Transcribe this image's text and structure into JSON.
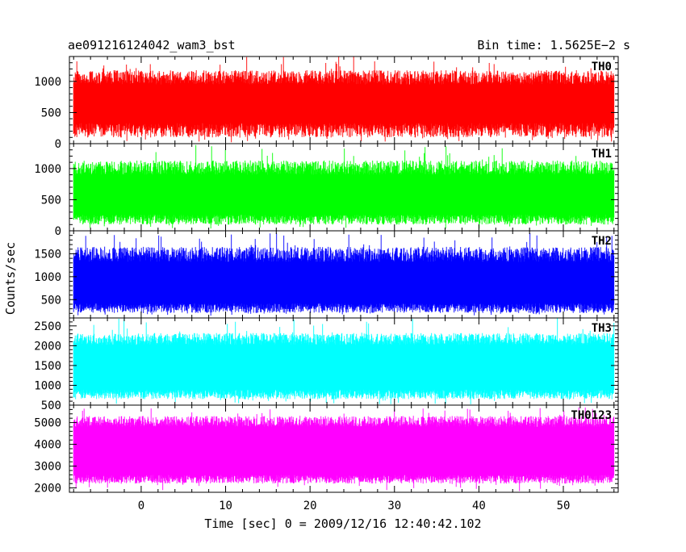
{
  "chart_data": {
    "type": "line",
    "title": "ae091216124042_wam3_bst",
    "bin_time_label": "Bin time: 1.5625E−2 s",
    "xlabel": "Time [sec] 0 = 2009/12/16 12:40:42.102",
    "ylabel": "Counts/sec",
    "xlim": [
      -8.5,
      56.5
    ],
    "data_range": [
      -8,
      56
    ],
    "x_ticks": [
      0,
      10,
      20,
      30,
      40,
      50
    ],
    "x_tick_labels": [
      "0",
      "10",
      "20",
      "30",
      "40",
      "50"
    ],
    "panels": [
      {
        "name": "TH0",
        "color": "#ff0000",
        "ylim": [
          0,
          1400
        ],
        "y_ticks": [
          0,
          500,
          1000
        ],
        "y_tick_labels": [
          "0",
          "500",
          "1000"
        ],
        "fill_band": [
          330,
          950
        ],
        "typical_min": 100,
        "typical_max": 1180,
        "extreme_min": 20,
        "extreme_max": 1420
      },
      {
        "name": "TH1",
        "color": "#00ff00",
        "ylim": [
          0,
          1400
        ],
        "y_ticks": [
          0,
          500,
          1000
        ],
        "y_tick_labels": [
          "0",
          "500",
          "1000"
        ],
        "fill_band": [
          260,
          900
        ],
        "typical_min": 100,
        "typical_max": 1130,
        "extreme_min": 30,
        "extreme_max": 1390
      },
      {
        "name": "TH2",
        "color": "#0000ff",
        "ylim": [
          100,
          2000
        ],
        "y_ticks": [
          500,
          1000,
          1500
        ],
        "y_tick_labels": [
          "500",
          "1000",
          "1500"
        ],
        "fill_band": [
          420,
          1320
        ],
        "typical_min": 210,
        "typical_max": 1650,
        "extreme_min": 150,
        "extreme_max": 1950
      },
      {
        "name": "TH3",
        "color": "#00ffff",
        "ylim": [
          500,
          2700
        ],
        "y_ticks": [
          500,
          1000,
          1500,
          2000,
          2500
        ],
        "y_tick_labels": [
          "500",
          "1000",
          "1500",
          "2000",
          "2500"
        ],
        "fill_band": [
          890,
          2020
        ],
        "typical_min": 650,
        "typical_max": 2320,
        "extreme_min": 520,
        "extreme_max": 2700
      },
      {
        "name": "TH0123",
        "color": "#ff00ff",
        "ylim": [
          1800,
          5800
        ],
        "y_ticks": [
          2000,
          3000,
          4000,
          5000
        ],
        "y_tick_labels": [
          "2000",
          "3000",
          "4000",
          "5000"
        ],
        "fill_band": [
          2600,
          4800
        ],
        "typical_min": 2200,
        "typical_max": 5300,
        "extreme_min": 1850,
        "extreme_max": 5700
      }
    ]
  }
}
